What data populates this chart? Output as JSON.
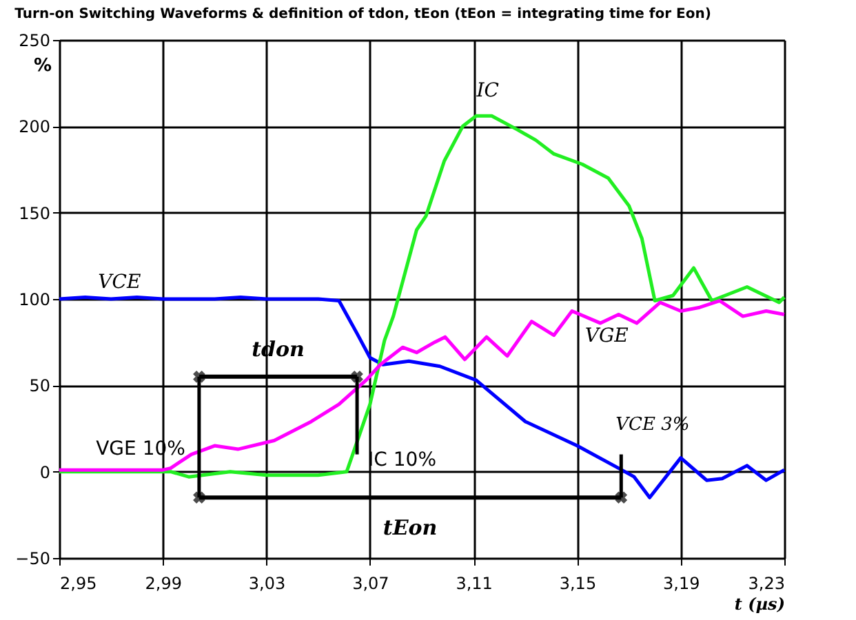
{
  "chart_data": {
    "type": "line",
    "title": "Turn-on Switching Waveforms & definition of tdon, tEon (tEon = integrating time for Eon)",
    "xlabel": "t (µs)",
    "ylabel": "%",
    "xlim": [
      2.95,
      3.23
    ],
    "xticks": [
      {
        "value": 2.95,
        "label": "2,95"
      },
      {
        "value": 2.99,
        "label": "2,99"
      },
      {
        "value": 3.03,
        "label": "3,03"
      },
      {
        "value": 3.07,
        "label": "3,07"
      },
      {
        "value": 3.11,
        "label": "3,11"
      },
      {
        "value": 3.15,
        "label": "3,15"
      },
      {
        "value": 3.19,
        "label": "3,19"
      },
      {
        "value": 3.23,
        "label": "3,23"
      }
    ],
    "ylim": [
      -50,
      250
    ],
    "yticks": [
      -50,
      0,
      50,
      100,
      150,
      200,
      250
    ],
    "grid": true,
    "marker": "none",
    "line_style": "solid",
    "series": [
      {
        "color": "#0000ff",
        "x": [
          2.95,
          2.96,
          2.97,
          2.98,
          2.99,
          3.0,
          3.01,
          3.02,
          3.03,
          3.04,
          3.05,
          3.058,
          3.065,
          3.07,
          3.075,
          3.085,
          3.097,
          3.111,
          3.13,
          3.15,
          3.166,
          3.172,
          3.178,
          3.19,
          3.2,
          3.206,
          3.2156,
          3.223,
          3.23
        ],
        "values": [
          100,
          101,
          100,
          101,
          100,
          100,
          100,
          101,
          100,
          100,
          100,
          99,
          80,
          66,
          62,
          64,
          61,
          53,
          29,
          15,
          2,
          -3,
          -15,
          8,
          -5,
          -4,
          3.5,
          -5,
          1
        ]
      },
      {
        "color": "#22ee22",
        "x": [
          2.95,
          2.97,
          2.99,
          2.993,
          3.0,
          3.016,
          3.03,
          3.05,
          3.061,
          3.07,
          3.0756,
          3.079,
          3.088,
          3.0916,
          3.0987,
          3.1058,
          3.111,
          3.117,
          3.127,
          3.134,
          3.141,
          3.152,
          3.162,
          3.17,
          3.175,
          3.18,
          3.187,
          3.195,
          3.202,
          3.2156,
          3.228,
          3.23
        ],
        "values": [
          0,
          0,
          0,
          0,
          -3,
          0,
          -2,
          -2,
          0,
          39,
          76,
          90,
          140,
          148,
          180,
          200,
          206,
          206,
          198,
          192,
          184,
          178,
          170,
          154,
          135,
          99,
          102,
          118,
          99,
          107,
          98,
          101
        ]
      },
      {
        "color": "#ff00ff",
        "x": [
          2.95,
          2.97,
          2.99,
          2.993,
          3.001,
          3.01,
          3.019,
          3.033,
          3.0473,
          3.058,
          3.0685,
          3.074,
          3.0826,
          3.088,
          3.095,
          3.099,
          3.1066,
          3.115,
          3.123,
          3.1324,
          3.141,
          3.148,
          3.159,
          3.166,
          3.173,
          3.182,
          3.19,
          3.197,
          3.205,
          3.214,
          3.223,
          3.23
        ],
        "values": [
          1,
          1,
          1,
          2,
          10,
          15,
          13,
          18,
          29,
          39,
          53,
          62,
          72,
          69,
          75,
          78,
          65,
          78,
          67,
          87,
          79,
          93,
          86,
          91,
          86,
          98,
          93,
          95,
          99,
          90,
          93,
          91
        ]
      },
      {
        "name": "tdon",
        "color": "#000000",
        "marker": "cross",
        "x": [
          3.004,
          3.065
        ],
        "values": [
          55,
          55
        ]
      },
      {
        "name": "tEon",
        "color": "#000000",
        "marker": "cross",
        "x": [
          3.004,
          3.167
        ],
        "values": [
          -15,
          -15
        ]
      },
      {
        "color": "#000000",
        "x": [
          3.004,
          3.004
        ],
        "values": [
          -15,
          55
        ]
      },
      {
        "color": "#000000",
        "x": [
          3.065,
          3.065
        ],
        "values": [
          10,
          55
        ]
      },
      {
        "color": "#000000",
        "x": [
          3.167,
          3.167
        ],
        "values": [
          -15,
          10
        ]
      }
    ],
    "annotations": [
      {
        "text": "VCE",
        "x": 2.965,
        "y": 100
      },
      {
        "text": "IC",
        "x": 3.109,
        "y": 206
      },
      {
        "text": "VGE",
        "x": 3.153,
        "y": 88
      },
      {
        "text": "VGE 10%",
        "x": 3.004,
        "y": 10
      },
      {
        "text": "IC 10%",
        "x": 3.065,
        "y": 10
      },
      {
        "text": "VCE 3%",
        "x": 3.167,
        "y": 10
      }
    ]
  }
}
